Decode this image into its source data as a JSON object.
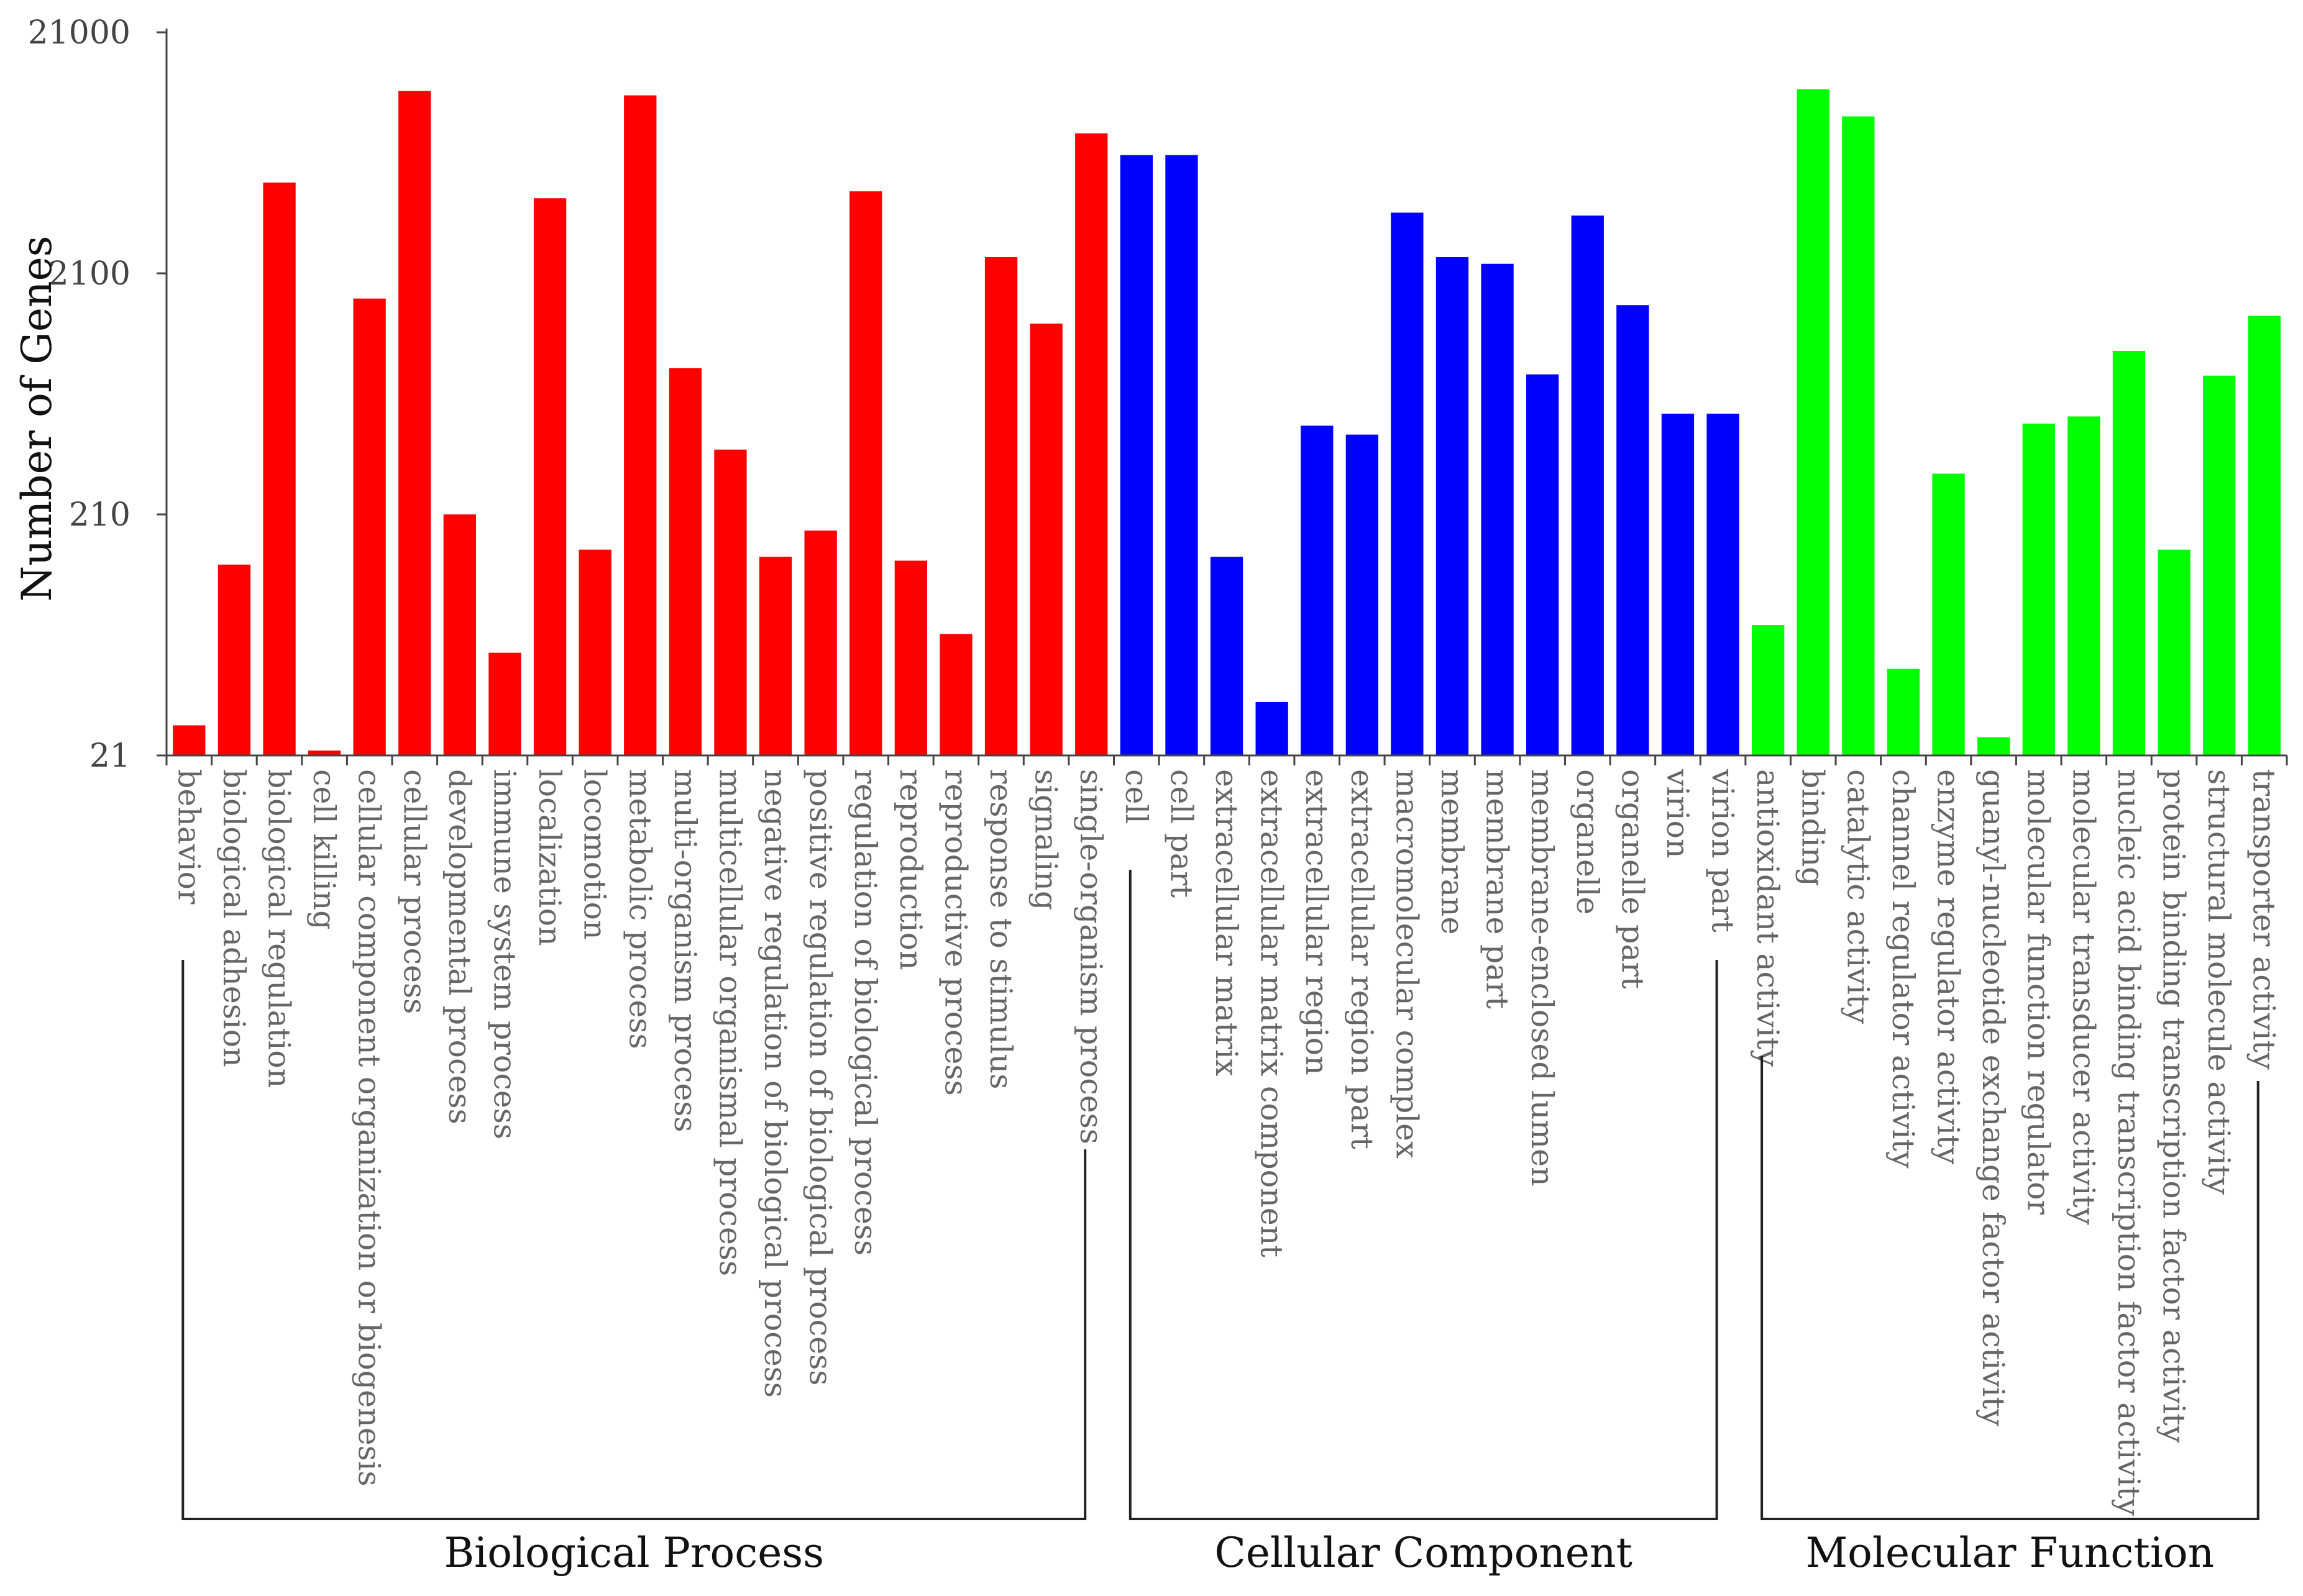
{
  "chart_data": {
    "type": "bar",
    "ylabel": "Number of Genes",
    "yscale": "log",
    "ylim": [
      21,
      21000
    ],
    "yticks": [
      "21000",
      "2100",
      "210",
      "21"
    ],
    "colors": {
      "Biological Process": "#ff0000",
      "Cellular Component": "#0000ff",
      "Molecular Function": "#00ff00"
    },
    "groups": [
      {
        "name": "Biological Process",
        "start": 0,
        "end": 20
      },
      {
        "name": "Cellular Component",
        "start": 21,
        "end": 34
      },
      {
        "name": "Molecular Function",
        "start": 35,
        "end": 46
      }
    ],
    "categories": [
      "behavior",
      "biological adhesion",
      "biological regulation",
      "cell killing",
      "cellular component organization or biogenesis",
      "cellular process",
      "developmental process",
      "immune system process",
      "localization",
      "locomotion",
      "metabolic process",
      "multi-organism process",
      "multicellular organismal process",
      "negative regulation of biological process",
      "positive regulation of biological process",
      "regulation of biological process",
      "reproduction",
      "reproductive process",
      "response to stimulus",
      "signaling",
      "single-organism process",
      "cell",
      "cell part",
      "extracellular matrix",
      "extracellular matrix component",
      "extracellular region",
      "extracellular region part",
      "macromolecular complex",
      "membrane",
      "membrane part",
      "membrane-enclosed lumen",
      "organelle",
      "organelle part",
      "virion",
      "virion part",
      "antioxidant activity",
      "binding",
      "catalytic activity",
      "channel regulator activity",
      "enzyme regulator activity",
      "guanyl-nucleotide exchange factor activity",
      "molecular function regulator",
      "molecular transducer activity",
      "nucleic acid binding transcription factor activity",
      "protein binding transcription factor activity",
      "structural molecule activity",
      "transporter activity"
    ],
    "values": [
      28,
      130,
      5000,
      22,
      1650,
      12000,
      210,
      56,
      4300,
      150,
      11500,
      850,
      390,
      140,
      180,
      4600,
      135,
      67,
      2450,
      1300,
      8000,
      6500,
      6500,
      140,
      35,
      490,
      450,
      3750,
      2450,
      2300,
      800,
      3650,
      1550,
      550,
      550,
      73,
      12200,
      9400,
      48,
      310,
      25,
      500,
      535,
      1000,
      150,
      790,
      1400
    ]
  }
}
